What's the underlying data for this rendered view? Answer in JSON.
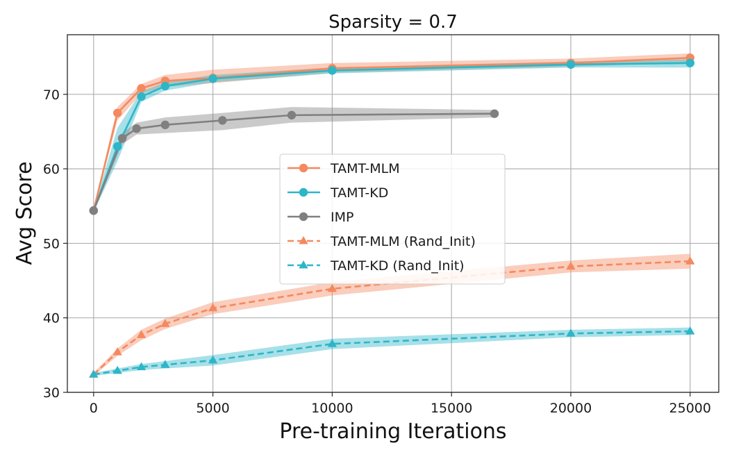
{
  "chart_data": {
    "type": "line",
    "title": "Sparsity = 0.7",
    "xlabel": "Pre-training Iterations",
    "ylabel": "Avg Score",
    "xlim": [
      -1100,
      26200
    ],
    "ylim": [
      30,
      78
    ],
    "xticks": [
      0,
      5000,
      10000,
      15000,
      20000,
      25000
    ],
    "yticks": [
      30,
      40,
      50,
      60,
      70
    ],
    "grid": true,
    "legend_position": "center",
    "series": [
      {
        "name": "TAMT-MLM",
        "color": "#f4895f",
        "marker": "circle",
        "linestyle": "solid",
        "x": [
          0,
          1000,
          2000,
          3000,
          5000,
          10000,
          20000,
          25000
        ],
        "y": [
          54.4,
          67.5,
          70.8,
          71.8,
          72.2,
          73.5,
          74.2,
          74.9
        ],
        "lower": [
          54.2,
          66.5,
          70.1,
          71.0,
          71.5,
          72.9,
          73.7,
          74.3
        ],
        "upper": [
          54.6,
          68.3,
          71.4,
          72.6,
          73.3,
          74.2,
          74.8,
          75.5
        ]
      },
      {
        "name": "TAMT-KD",
        "color": "#2db6c7",
        "marker": "circle",
        "linestyle": "solid",
        "x": [
          0,
          1000,
          2000,
          3000,
          5000,
          10000,
          20000,
          25000
        ],
        "y": [
          54.4,
          63.0,
          69.7,
          71.1,
          72.1,
          73.2,
          74.0,
          74.2
        ],
        "lower": [
          54.2,
          61.0,
          69.0,
          70.5,
          71.6,
          72.8,
          73.6,
          73.6
        ],
        "upper": [
          54.6,
          65.5,
          70.4,
          71.6,
          72.6,
          73.6,
          74.4,
          74.7
        ]
      },
      {
        "name": "IMP",
        "color": "#808080",
        "marker": "circle",
        "linestyle": "solid",
        "x": [
          0,
          1200,
          1800,
          3000,
          5400,
          8300,
          16800
        ],
        "y": [
          54.4,
          64.1,
          65.4,
          65.9,
          66.5,
          67.2,
          67.4
        ],
        "lower": [
          54.2,
          63.3,
          64.6,
          64.8,
          65.2,
          66.2,
          66.9
        ],
        "upper": [
          54.6,
          64.8,
          66.2,
          66.9,
          67.5,
          68.3,
          67.9
        ]
      },
      {
        "name": "TAMT-MLM (Rand_Init)",
        "color": "#f4895f",
        "marker": "triangle",
        "linestyle": "dashed",
        "x": [
          0,
          1000,
          2000,
          3000,
          5000,
          10000,
          20000,
          25000
        ],
        "y": [
          32.4,
          35.4,
          37.7,
          39.2,
          41.3,
          43.9,
          46.9,
          47.6
        ],
        "lower": [
          32.2,
          34.9,
          37.0,
          38.5,
          40.5,
          43.0,
          46.1,
          46.6
        ],
        "upper": [
          32.6,
          35.9,
          38.4,
          39.9,
          42.1,
          44.8,
          47.7,
          48.6
        ]
      },
      {
        "name": "TAMT-KD (Rand_Init)",
        "color": "#2db6c7",
        "marker": "triangle",
        "linestyle": "dashed",
        "x": [
          0,
          1000,
          2000,
          3000,
          5000,
          10000,
          20000,
          25000
        ],
        "y": [
          32.4,
          32.9,
          33.4,
          33.7,
          34.3,
          36.5,
          37.9,
          38.2
        ],
        "lower": [
          32.2,
          32.6,
          33.0,
          33.2,
          33.6,
          35.8,
          37.4,
          37.7
        ],
        "upper": [
          32.6,
          33.2,
          33.8,
          34.2,
          35.0,
          37.2,
          38.4,
          38.7
        ]
      }
    ]
  }
}
